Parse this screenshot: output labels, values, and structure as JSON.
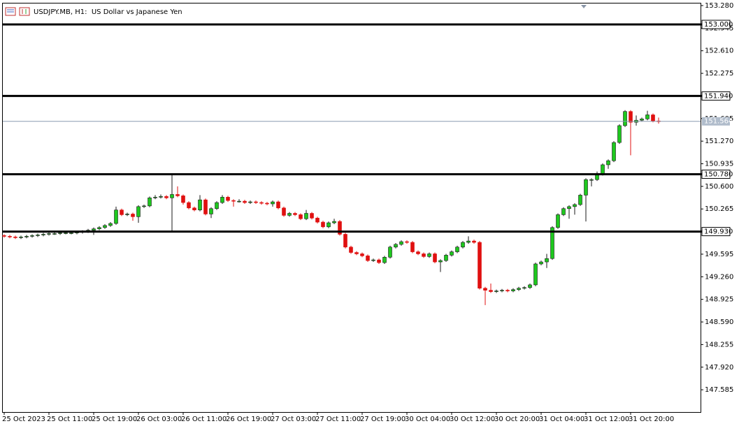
{
  "chart_data": {
    "type": "candlestick",
    "title": "USDJPY.MB, H1:  US Dollar vs Japanese Yen",
    "categories": [
      "25 Oct 2023",
      null,
      null,
      null,
      null,
      null,
      null,
      null,
      "25 Oct 11:00",
      null,
      null,
      null,
      null,
      null,
      null,
      null,
      "25 Oct 19:00",
      null,
      null,
      null,
      null,
      null,
      null,
      null,
      "26 Oct 03:00",
      null,
      null,
      null,
      null,
      null,
      null,
      null,
      "26 Oct 11:00",
      null,
      null,
      null,
      null,
      null,
      null,
      null,
      "26 Oct 19:00",
      null,
      null,
      null,
      null,
      null,
      null,
      null,
      "27 Oct 03:00",
      null,
      null,
      null,
      null,
      null,
      null,
      null,
      "27 Oct 11:00",
      null,
      null,
      null,
      null,
      null,
      null,
      null,
      "27 Oct 19:00",
      null,
      null,
      null,
      null,
      null,
      null,
      null,
      "30 Oct 04:00",
      null,
      null,
      null,
      null,
      null,
      null,
      null,
      "30 Oct 12:00",
      null,
      null,
      null,
      null,
      null,
      null,
      null,
      "30 Oct 20:00",
      null,
      null,
      null,
      null,
      null,
      null,
      null,
      "31 Oct 04:00",
      null,
      null,
      null,
      null,
      null,
      null,
      null,
      "31 Oct 12:00",
      null,
      null,
      null,
      null,
      null,
      null,
      null,
      "31 Oct 20:00",
      null,
      null,
      null,
      null,
      null
    ],
    "open": [
      149.87,
      149.86,
      149.85,
      149.84,
      149.85,
      149.86,
      149.87,
      149.88,
      149.89,
      149.9,
      149.9,
      149.91,
      149.91,
      149.91,
      149.92,
      149.93,
      149.95,
      149.97,
      149.99,
      150.02,
      150.05,
      150.25,
      150.18,
      150.19,
      150.15,
      150.3,
      150.31,
      150.43,
      150.44,
      150.45,
      150.43,
      150.48,
      150.46,
      150.36,
      150.28,
      150.25,
      150.4,
      150.19,
      150.27,
      150.36,
      150.44,
      150.39,
      150.38,
      150.38,
      150.36,
      150.37,
      150.36,
      150.35,
      150.34,
      150.37,
      150.28,
      150.17,
      150.2,
      150.18,
      150.12,
      150.2,
      150.13,
      150.07,
      150.0,
      150.06,
      150.08,
      149.89,
      149.7,
      149.62,
      149.6,
      149.57,
      149.5,
      149.51,
      149.47,
      149.55,
      149.7,
      149.74,
      149.78,
      149.77,
      149.63,
      149.6,
      149.56,
      149.6,
      149.48,
      149.5,
      149.58,
      149.63,
      149.7,
      149.77,
      149.79,
      149.77,
      149.09,
      149.06,
      149.04,
      149.05,
      149.06,
      149.05,
      149.07,
      149.09,
      149.1,
      149.14,
      149.45,
      149.48,
      149.53,
      149.99,
      150.18,
      150.27,
      150.3,
      150.33,
      150.47,
      150.7,
      150.7,
      150.78,
      150.92,
      150.98,
      151.25,
      151.5,
      151.71,
      151.55,
      151.58,
      151.6,
      151.66,
      151.57
    ],
    "high": [
      149.89,
      149.88,
      149.87,
      149.87,
      149.88,
      149.89,
      149.9,
      149.91,
      149.92,
      149.92,
      149.93,
      149.93,
      149.93,
      149.94,
      149.95,
      149.97,
      149.99,
      150.01,
      150.04,
      150.07,
      150.3,
      150.27,
      150.21,
      150.21,
      150.32,
      150.33,
      150.45,
      150.47,
      150.48,
      150.47,
      150.78,
      150.6,
      150.48,
      150.38,
      150.3,
      150.47,
      150.42,
      150.29,
      150.38,
      150.47,
      150.46,
      150.41,
      150.41,
      150.4,
      150.39,
      150.39,
      150.38,
      150.37,
      150.39,
      150.39,
      150.3,
      150.22,
      150.22,
      150.2,
      150.25,
      150.22,
      150.15,
      150.09,
      150.08,
      150.12,
      150.1,
      149.91,
      149.72,
      149.64,
      149.62,
      149.59,
      149.53,
      149.53,
      149.57,
      149.72,
      149.76,
      149.8,
      149.8,
      149.79,
      149.65,
      149.62,
      149.62,
      149.62,
      149.52,
      149.6,
      149.65,
      149.72,
      149.79,
      149.86,
      149.81,
      149.79,
      149.11,
      149.16,
      149.07,
      149.08,
      149.08,
      149.09,
      149.11,
      149.12,
      149.16,
      149.47,
      149.5,
      149.6,
      150.01,
      150.2,
      150.29,
      150.32,
      150.35,
      150.49,
      150.72,
      150.72,
      150.82,
      150.94,
      151.0,
      151.27,
      151.52,
      151.73,
      151.73,
      151.65,
      151.62,
      151.72,
      151.68,
      151.62
    ],
    "low": [
      149.84,
      149.83,
      149.82,
      149.82,
      149.83,
      149.84,
      149.85,
      149.86,
      149.87,
      149.88,
      149.88,
      149.89,
      149.89,
      149.89,
      149.9,
      149.91,
      149.88,
      149.95,
      149.97,
      150.0,
      150.03,
      150.16,
      150.16,
      150.09,
      150.06,
      150.28,
      150.29,
      150.41,
      150.42,
      150.41,
      149.93,
      150.44,
      150.33,
      150.26,
      150.23,
      150.23,
      150.17,
      150.13,
      150.25,
      150.34,
      150.37,
      150.3,
      150.36,
      150.34,
      150.34,
      150.34,
      150.33,
      150.32,
      150.3,
      150.26,
      150.15,
      150.15,
      150.16,
      150.1,
      150.1,
      150.11,
      150.05,
      149.98,
      149.98,
      150.04,
      149.87,
      149.68,
      149.6,
      149.58,
      149.55,
      149.48,
      149.48,
      149.45,
      149.45,
      149.53,
      149.68,
      149.72,
      149.75,
      149.61,
      149.58,
      149.54,
      149.54,
      149.46,
      149.33,
      149.48,
      149.56,
      149.61,
      149.68,
      149.75,
      149.75,
      149.07,
      148.84,
      149.02,
      149.02,
      149.03,
      149.03,
      149.03,
      149.05,
      149.07,
      149.08,
      149.12,
      149.43,
      149.39,
      149.51,
      149.97,
      150.16,
      150.12,
      150.18,
      150.31,
      150.08,
      150.6,
      150.68,
      150.76,
      150.86,
      150.96,
      151.23,
      151.48,
      151.06,
      151.5,
      151.56,
      151.58,
      151.55,
      151.53
    ],
    "close": [
      149.86,
      149.85,
      149.84,
      149.85,
      149.86,
      149.87,
      149.88,
      149.89,
      149.9,
      149.9,
      149.91,
      149.91,
      149.91,
      149.92,
      149.93,
      149.95,
      149.97,
      149.99,
      150.02,
      150.05,
      150.25,
      150.18,
      150.19,
      150.15,
      150.3,
      150.31,
      150.43,
      150.44,
      150.45,
      150.43,
      150.48,
      150.46,
      150.36,
      150.28,
      150.25,
      150.4,
      150.19,
      150.27,
      150.36,
      150.44,
      150.39,
      150.38,
      150.38,
      150.36,
      150.37,
      150.36,
      150.35,
      150.34,
      150.37,
      150.28,
      150.17,
      150.2,
      150.18,
      150.12,
      150.2,
      150.13,
      150.07,
      150.0,
      150.06,
      150.08,
      149.89,
      149.7,
      149.62,
      149.6,
      149.57,
      149.5,
      149.51,
      149.47,
      149.55,
      149.7,
      149.74,
      149.78,
      149.77,
      149.63,
      149.6,
      149.56,
      149.6,
      149.48,
      149.5,
      149.58,
      149.63,
      149.7,
      149.77,
      149.79,
      149.77,
      149.09,
      149.06,
      149.04,
      149.05,
      149.06,
      149.05,
      149.07,
      149.09,
      149.1,
      149.14,
      149.45,
      149.48,
      149.53,
      149.99,
      150.18,
      150.27,
      150.3,
      150.33,
      150.47,
      150.7,
      150.7,
      150.78,
      150.92,
      150.98,
      151.25,
      151.5,
      151.71,
      151.55,
      151.58,
      151.6,
      151.66,
      151.57,
      151.56
    ],
    "up_color": "#1ec81e",
    "down_color": "#e01010",
    "ylim": [
      147.255,
      153.321
    ],
    "yticks": [
      {
        "value": 153.28,
        "label": "153.280"
      },
      {
        "value": 152.945,
        "label": "152.945"
      },
      {
        "value": 152.61,
        "label": "152.610"
      },
      {
        "value": 152.275,
        "label": "152.275"
      },
      {
        "value": 151.605,
        "label": "151.605"
      },
      {
        "value": 151.27,
        "label": "151.270"
      },
      {
        "value": 150.935,
        "label": "150.935"
      },
      {
        "value": 150.6,
        "label": "150.600"
      },
      {
        "value": 150.265,
        "label": "150.265"
      },
      {
        "value": 149.595,
        "label": "149.595"
      },
      {
        "value": 149.26,
        "label": "149.260"
      },
      {
        "value": 148.925,
        "label": "148.925"
      },
      {
        "value": 148.59,
        "label": "148.590"
      },
      {
        "value": 148.255,
        "label": "148.255"
      },
      {
        "value": 147.92,
        "label": "147.920"
      },
      {
        "value": 147.585,
        "label": "147.585"
      }
    ],
    "levels": [
      {
        "value": 153.0,
        "label": "153.000"
      },
      {
        "value": 151.94,
        "label": "151.940"
      },
      {
        "value": 150.78,
        "label": "150.780"
      },
      {
        "value": 149.93,
        "label": "149.930"
      }
    ],
    "current_price": {
      "value": 151.564,
      "label": "151.564"
    }
  }
}
